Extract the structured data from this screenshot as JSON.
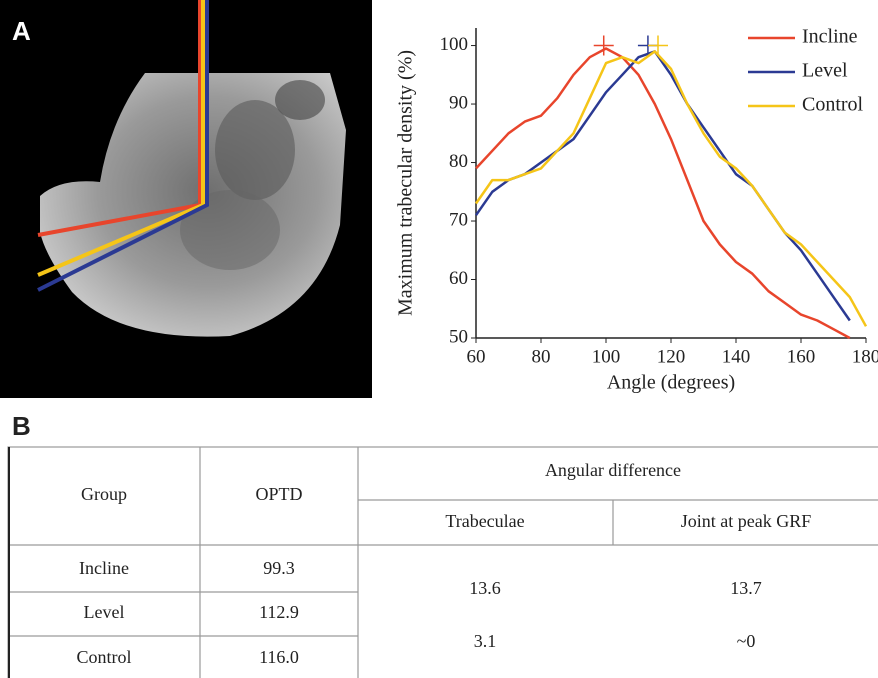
{
  "panel_labels": [
    "A",
    "B"
  ],
  "chart_data": {
    "type": "line",
    "xlabel": "Angle (degrees)",
    "ylabel": "Maximum trabecular density (%)",
    "xlim": [
      60,
      180
    ],
    "ylim": [
      50,
      103
    ],
    "xticks": [
      60,
      80,
      100,
      120,
      140,
      160,
      180
    ],
    "yticks": [
      50,
      60,
      70,
      80,
      90,
      100
    ],
    "legend": "upper right",
    "x": [
      60,
      65,
      70,
      75,
      80,
      85,
      90,
      95,
      100,
      105,
      110,
      115,
      120,
      125,
      130,
      135,
      140,
      145,
      150,
      155,
      160,
      165,
      170,
      175,
      180
    ],
    "series": [
      {
        "name": "Incline",
        "color": "#e8452c",
        "peak": {
          "x": 99.3,
          "y": 100
        },
        "values": [
          79,
          82,
          85,
          87,
          88,
          91,
          95,
          98,
          99.5,
          98,
          95,
          90,
          84,
          77,
          70,
          66,
          63,
          61,
          58,
          56,
          54,
          53,
          51.5,
          50,
          null
        ]
      },
      {
        "name": "Level",
        "color": "#2b3a93",
        "peak": {
          "x": 112.9,
          "y": 100
        },
        "values": [
          71,
          75,
          77,
          78,
          80,
          82,
          84,
          88,
          92,
          95,
          98,
          99,
          95,
          90,
          86,
          82,
          78,
          76,
          72,
          68,
          65,
          61,
          57,
          53,
          null
        ]
      },
      {
        "name": "Control",
        "color": "#f5c518",
        "peak": {
          "x": 116.0,
          "y": 100
        },
        "values": [
          73,
          77,
          77,
          78,
          79,
          82,
          85,
          91,
          97,
          98,
          97,
          99,
          96,
          90,
          85,
          81,
          79,
          76,
          72,
          68,
          66,
          63,
          60,
          57,
          52
        ]
      }
    ]
  },
  "table": {
    "headers": {
      "group": "Group",
      "optd": "OPTD",
      "angular_difference": "Angular difference",
      "trabeculae": "Trabeculae",
      "joint": "Joint at peak GRF"
    },
    "rows": [
      [
        "Incline",
        "99.3"
      ],
      [
        "Level",
        "112.9"
      ],
      [
        "Control",
        "116.0"
      ]
    ],
    "differences": [
      [
        "13.6",
        "13.7"
      ],
      [
        "3.1",
        "~0"
      ]
    ]
  }
}
